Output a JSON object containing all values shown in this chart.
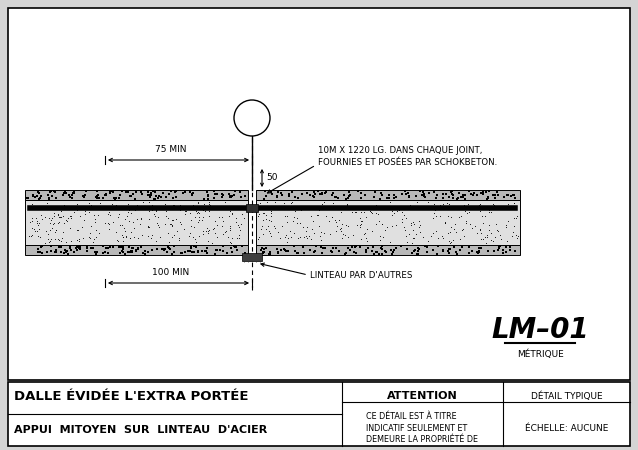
{
  "bg_color": "#d4d4d4",
  "drawing_bg": "#ffffff",
  "title_text": "LM–01",
  "subtitle_text": "MÉTRIQUE",
  "annotation1": "10M X 1220 LG. DANS CHAQUE JOINT,\nFOURNIES ET POSÉES PAR SCHOKBETON.",
  "annotation2": "LINTEAU PAR D'AUTRES",
  "dim1_text": "75 MIN",
  "dim2_text": "50",
  "dim3_text": "100 MIN",
  "footer_left_top": "DALLE ÉVIDÉE L'EXTRA PORTÉE",
  "footer_left_bot": "APPUI  MITOYEN  SUR  LINTEAU  D'ACIER",
  "footer_mid_top": "ATTENTION",
  "footer_mid_bot": "CE DÉTAIL EST À TITRE\nINDICATIF SEULEMENT ET\nDEMEURE LA PROPRIÉTÉ DE",
  "footer_right_top": "DÉTAIL TYPIQUE",
  "footer_right_bot": "ÉCHELLE: AUCUNE"
}
